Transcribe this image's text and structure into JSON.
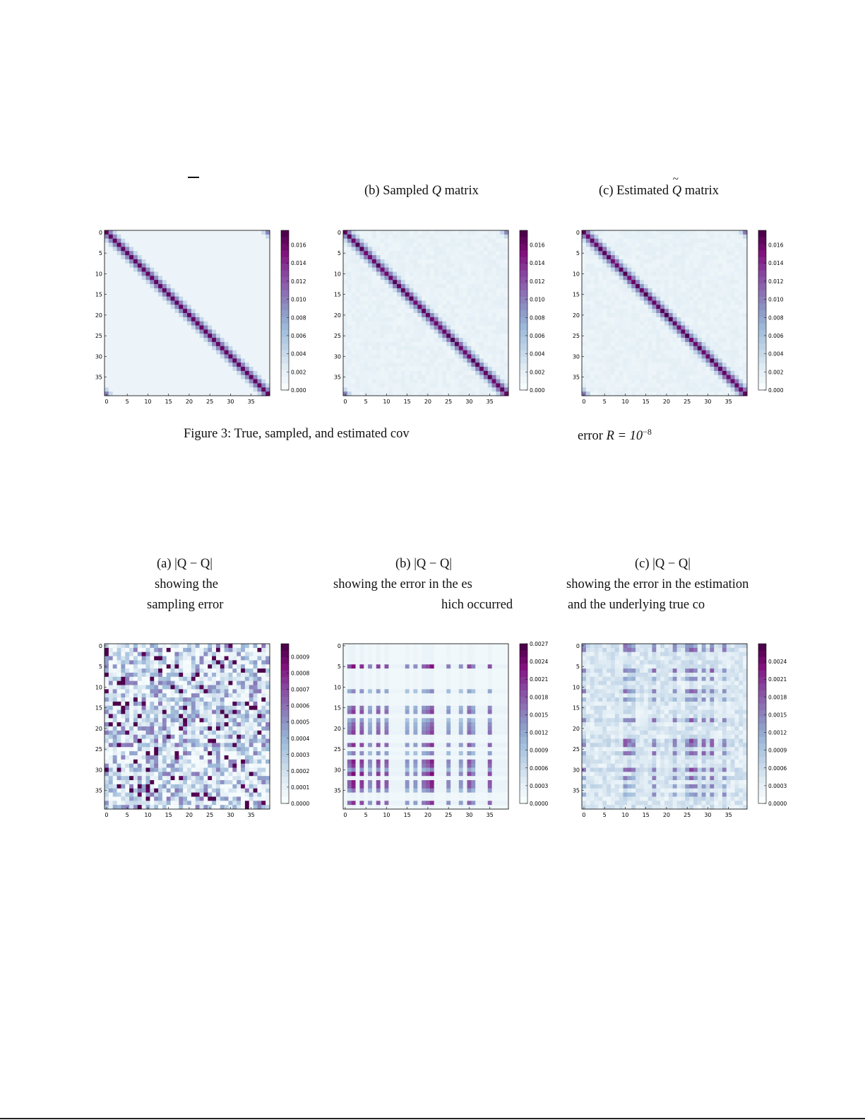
{
  "figure3": {
    "panel_a_caption": "",
    "panel_b_caption_pre": "(b) Sampled ",
    "panel_b_caption_math": "Q",
    "panel_b_caption_post": " matrix",
    "panel_c_caption_pre": "(c) Estimated ",
    "panel_c_caption_math": "Q",
    "panel_c_caption_post": " matrix",
    "caption_left": "Figure 3:  True, sampled, and estimated cov",
    "caption_right_pre": "error ",
    "caption_right_math": "R = 10",
    "caption_right_exp": "−8"
  },
  "figure4": {
    "panel_a_label": "(a) |Q − Q|",
    "panel_a_line2": "showing the",
    "panel_a_line3": "sampling error",
    "panel_b_label": "(b) |Q − Q|",
    "panel_b_line2": "showing the error in the es",
    "panel_b_line3": "hich occurred",
    "panel_c_label": "(c) |Q − Q|",
    "panel_c_line2": "showing the error in the estimation",
    "panel_c_line3": "and the underlying true co"
  },
  "colors": {
    "cmap": [
      "#f7fcfd",
      "#e0ecf4",
      "#bfd3e6",
      "#9ebcda",
      "#8c96c6",
      "#8c6bb1",
      "#88419d",
      "#810f7c",
      "#4d004b"
    ]
  },
  "chart_data": [
    {
      "type": "heatmap",
      "id": "true_Q",
      "pattern": "band",
      "size": 40,
      "vmin": 0.0,
      "vmax": 0.0176,
      "seed": 0,
      "ticks_x": [
        "0",
        "5",
        "10",
        "15",
        "20",
        "25",
        "30",
        "35"
      ],
      "ticks_y": [
        "0",
        "5",
        "10",
        "15",
        "20",
        "25",
        "30",
        "35"
      ],
      "colorbar_ticks": [
        "0.016",
        "0.014",
        "0.012",
        "0.010",
        "0.008",
        "0.006",
        "0.004",
        "0.002",
        "0.000"
      ],
      "colorbar_values": [
        0.016,
        0.014,
        0.012,
        0.01,
        0.008,
        0.006,
        0.004,
        0.002,
        0.0
      ]
    },
    {
      "type": "heatmap",
      "id": "sampled_Q",
      "pattern": "band_noise",
      "size": 40,
      "vmin": 0.0,
      "vmax": 0.0176,
      "seed": 3,
      "ticks_x": [
        "0",
        "5",
        "10",
        "15",
        "20",
        "25",
        "30",
        "35"
      ],
      "ticks_y": [
        "0",
        "5",
        "10",
        "15",
        "20",
        "25",
        "30",
        "35"
      ],
      "colorbar_ticks": [
        "0.016",
        "0.014",
        "0.012",
        "0.010",
        "0.008",
        "0.006",
        "0.004",
        "0.002",
        "0.000"
      ],
      "colorbar_values": [
        0.016,
        0.014,
        0.012,
        0.01,
        0.008,
        0.006,
        0.004,
        0.002,
        0.0
      ]
    },
    {
      "type": "heatmap",
      "id": "estimated_Q",
      "pattern": "band_noise",
      "size": 40,
      "vmin": 0.0,
      "vmax": 0.0176,
      "seed": 7,
      "ticks_x": [
        "0",
        "5",
        "10",
        "15",
        "20",
        "25",
        "30",
        "35"
      ],
      "ticks_y": [
        "0",
        "5",
        "10",
        "15",
        "20",
        "25",
        "30",
        "35"
      ],
      "colorbar_ticks": [
        "0.016",
        "0.014",
        "0.012",
        "0.010",
        "0.008",
        "0.006",
        "0.004",
        "0.002",
        "0.000"
      ],
      "colorbar_values": [
        0.016,
        0.014,
        0.012,
        0.01,
        0.008,
        0.006,
        0.004,
        0.002,
        0.0
      ]
    },
    {
      "type": "heatmap",
      "id": "err_sampling",
      "pattern": "random",
      "size": 40,
      "vmin": 0.0,
      "vmax": 0.00098,
      "seed": 11,
      "ticks_x": [
        "0",
        "5",
        "10",
        "15",
        "20",
        "25",
        "30",
        "35"
      ],
      "ticks_y": [
        "0",
        "5",
        "10",
        "15",
        "20",
        "25",
        "30",
        "35"
      ],
      "colorbar_ticks": [
        "0.0009",
        "0.0008",
        "0.0007",
        "0.0006",
        "0.0005",
        "0.0004",
        "0.0003",
        "0.0002",
        "0.0001",
        "0.0000"
      ],
      "colorbar_values": [
        0.0009,
        0.0008,
        0.0007,
        0.0006,
        0.0005,
        0.0004,
        0.0003,
        0.0002,
        0.0001,
        0.0
      ]
    },
    {
      "type": "heatmap",
      "id": "err_estimation",
      "pattern": "grid",
      "size": 40,
      "vmin": 0.0,
      "vmax": 0.0027,
      "seed": 19,
      "ticks_x": [
        "0",
        "5",
        "10",
        "15",
        "20",
        "25",
        "30",
        "35"
      ],
      "ticks_y": [
        "0",
        "5",
        "10",
        "15",
        "20",
        "25",
        "30",
        "35"
      ],
      "colorbar_ticks": [
        "0.0027",
        "0.0024",
        "0.0021",
        "0.0018",
        "0.0015",
        "0.0012",
        "0.0009",
        "0.0006",
        "0.0003",
        "0.0000"
      ],
      "colorbar_values": [
        0.0027,
        0.0024,
        0.0021,
        0.0018,
        0.0015,
        0.0012,
        0.0009,
        0.0006,
        0.0003,
        0.0
      ]
    },
    {
      "type": "heatmap",
      "id": "err_true_est",
      "pattern": "grid_noise",
      "size": 40,
      "vmin": 0.0,
      "vmax": 0.0027,
      "seed": 23,
      "ticks_x": [
        "0",
        "5",
        "10",
        "15",
        "20",
        "25",
        "30",
        "35"
      ],
      "ticks_y": [
        "0",
        "5",
        "10",
        "15",
        "20",
        "25",
        "30",
        "35"
      ],
      "colorbar_ticks": [
        "0.0024",
        "0.0021",
        "0.0018",
        "0.0015",
        "0.0012",
        "0.0009",
        "0.0006",
        "0.0003",
        "0.0000"
      ],
      "colorbar_values": [
        0.0024,
        0.0021,
        0.0018,
        0.0015,
        0.0012,
        0.0009,
        0.0006,
        0.0003,
        0.0
      ]
    }
  ]
}
